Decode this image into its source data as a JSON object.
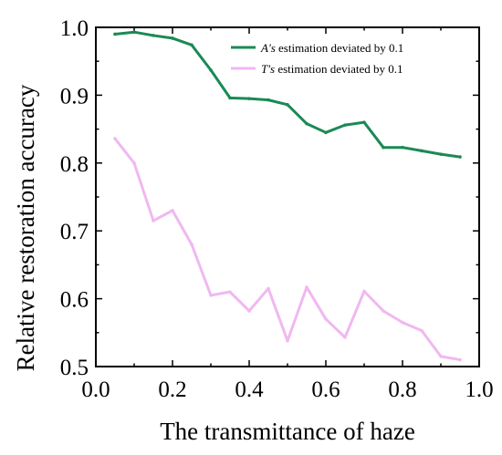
{
  "chart_data": {
    "type": "line",
    "title": "",
    "xlabel": "The transmittance of haze",
    "ylabel": "Relative restoration accuracy",
    "xlim": [
      0.0,
      1.0
    ],
    "ylim": [
      0.5,
      1.0
    ],
    "xticks": [
      0.0,
      0.2,
      0.4,
      0.6,
      0.8,
      1.0
    ],
    "xtick_labels": [
      "0.0",
      "0.2",
      "0.4",
      "0.6",
      "0.8",
      "1.0"
    ],
    "yticks": [
      0.5,
      0.6,
      0.7,
      0.8,
      0.9,
      1.0
    ],
    "ytick_labels": [
      "0.5",
      "0.6",
      "0.7",
      "0.8",
      "0.9",
      "1.0"
    ],
    "grid": false,
    "legend_position": "top-right",
    "series": [
      {
        "name": "A's estimation deviated by 0.1",
        "name_italic": "A's",
        "name_rest": " estimation deviated by 0.1",
        "color": "#1a8a55",
        "x": [
          0.05,
          0.1,
          0.15,
          0.2,
          0.25,
          0.3,
          0.35,
          0.4,
          0.45,
          0.5,
          0.55,
          0.6,
          0.65,
          0.7,
          0.75,
          0.8,
          0.85,
          0.9,
          0.95
        ],
        "y": [
          0.99,
          0.993,
          0.988,
          0.984,
          0.974,
          0.937,
          0.896,
          0.895,
          0.893,
          0.886,
          0.858,
          0.845,
          0.856,
          0.86,
          0.823,
          0.823,
          0.818,
          0.813,
          0.809
        ]
      },
      {
        "name": "T's estimation deviated by 0.1",
        "name_italic": "T's",
        "name_rest": " estimation deviated by 0.1",
        "color": "#f0b8f0",
        "x": [
          0.05,
          0.1,
          0.15,
          0.2,
          0.25,
          0.3,
          0.35,
          0.4,
          0.45,
          0.5,
          0.55,
          0.6,
          0.65,
          0.7,
          0.75,
          0.8,
          0.85,
          0.9,
          0.95
        ],
        "y": [
          0.836,
          0.8,
          0.715,
          0.73,
          0.68,
          0.605,
          0.61,
          0.582,
          0.615,
          0.538,
          0.617,
          0.57,
          0.543,
          0.611,
          0.582,
          0.565,
          0.553,
          0.515,
          0.51
        ]
      }
    ]
  }
}
